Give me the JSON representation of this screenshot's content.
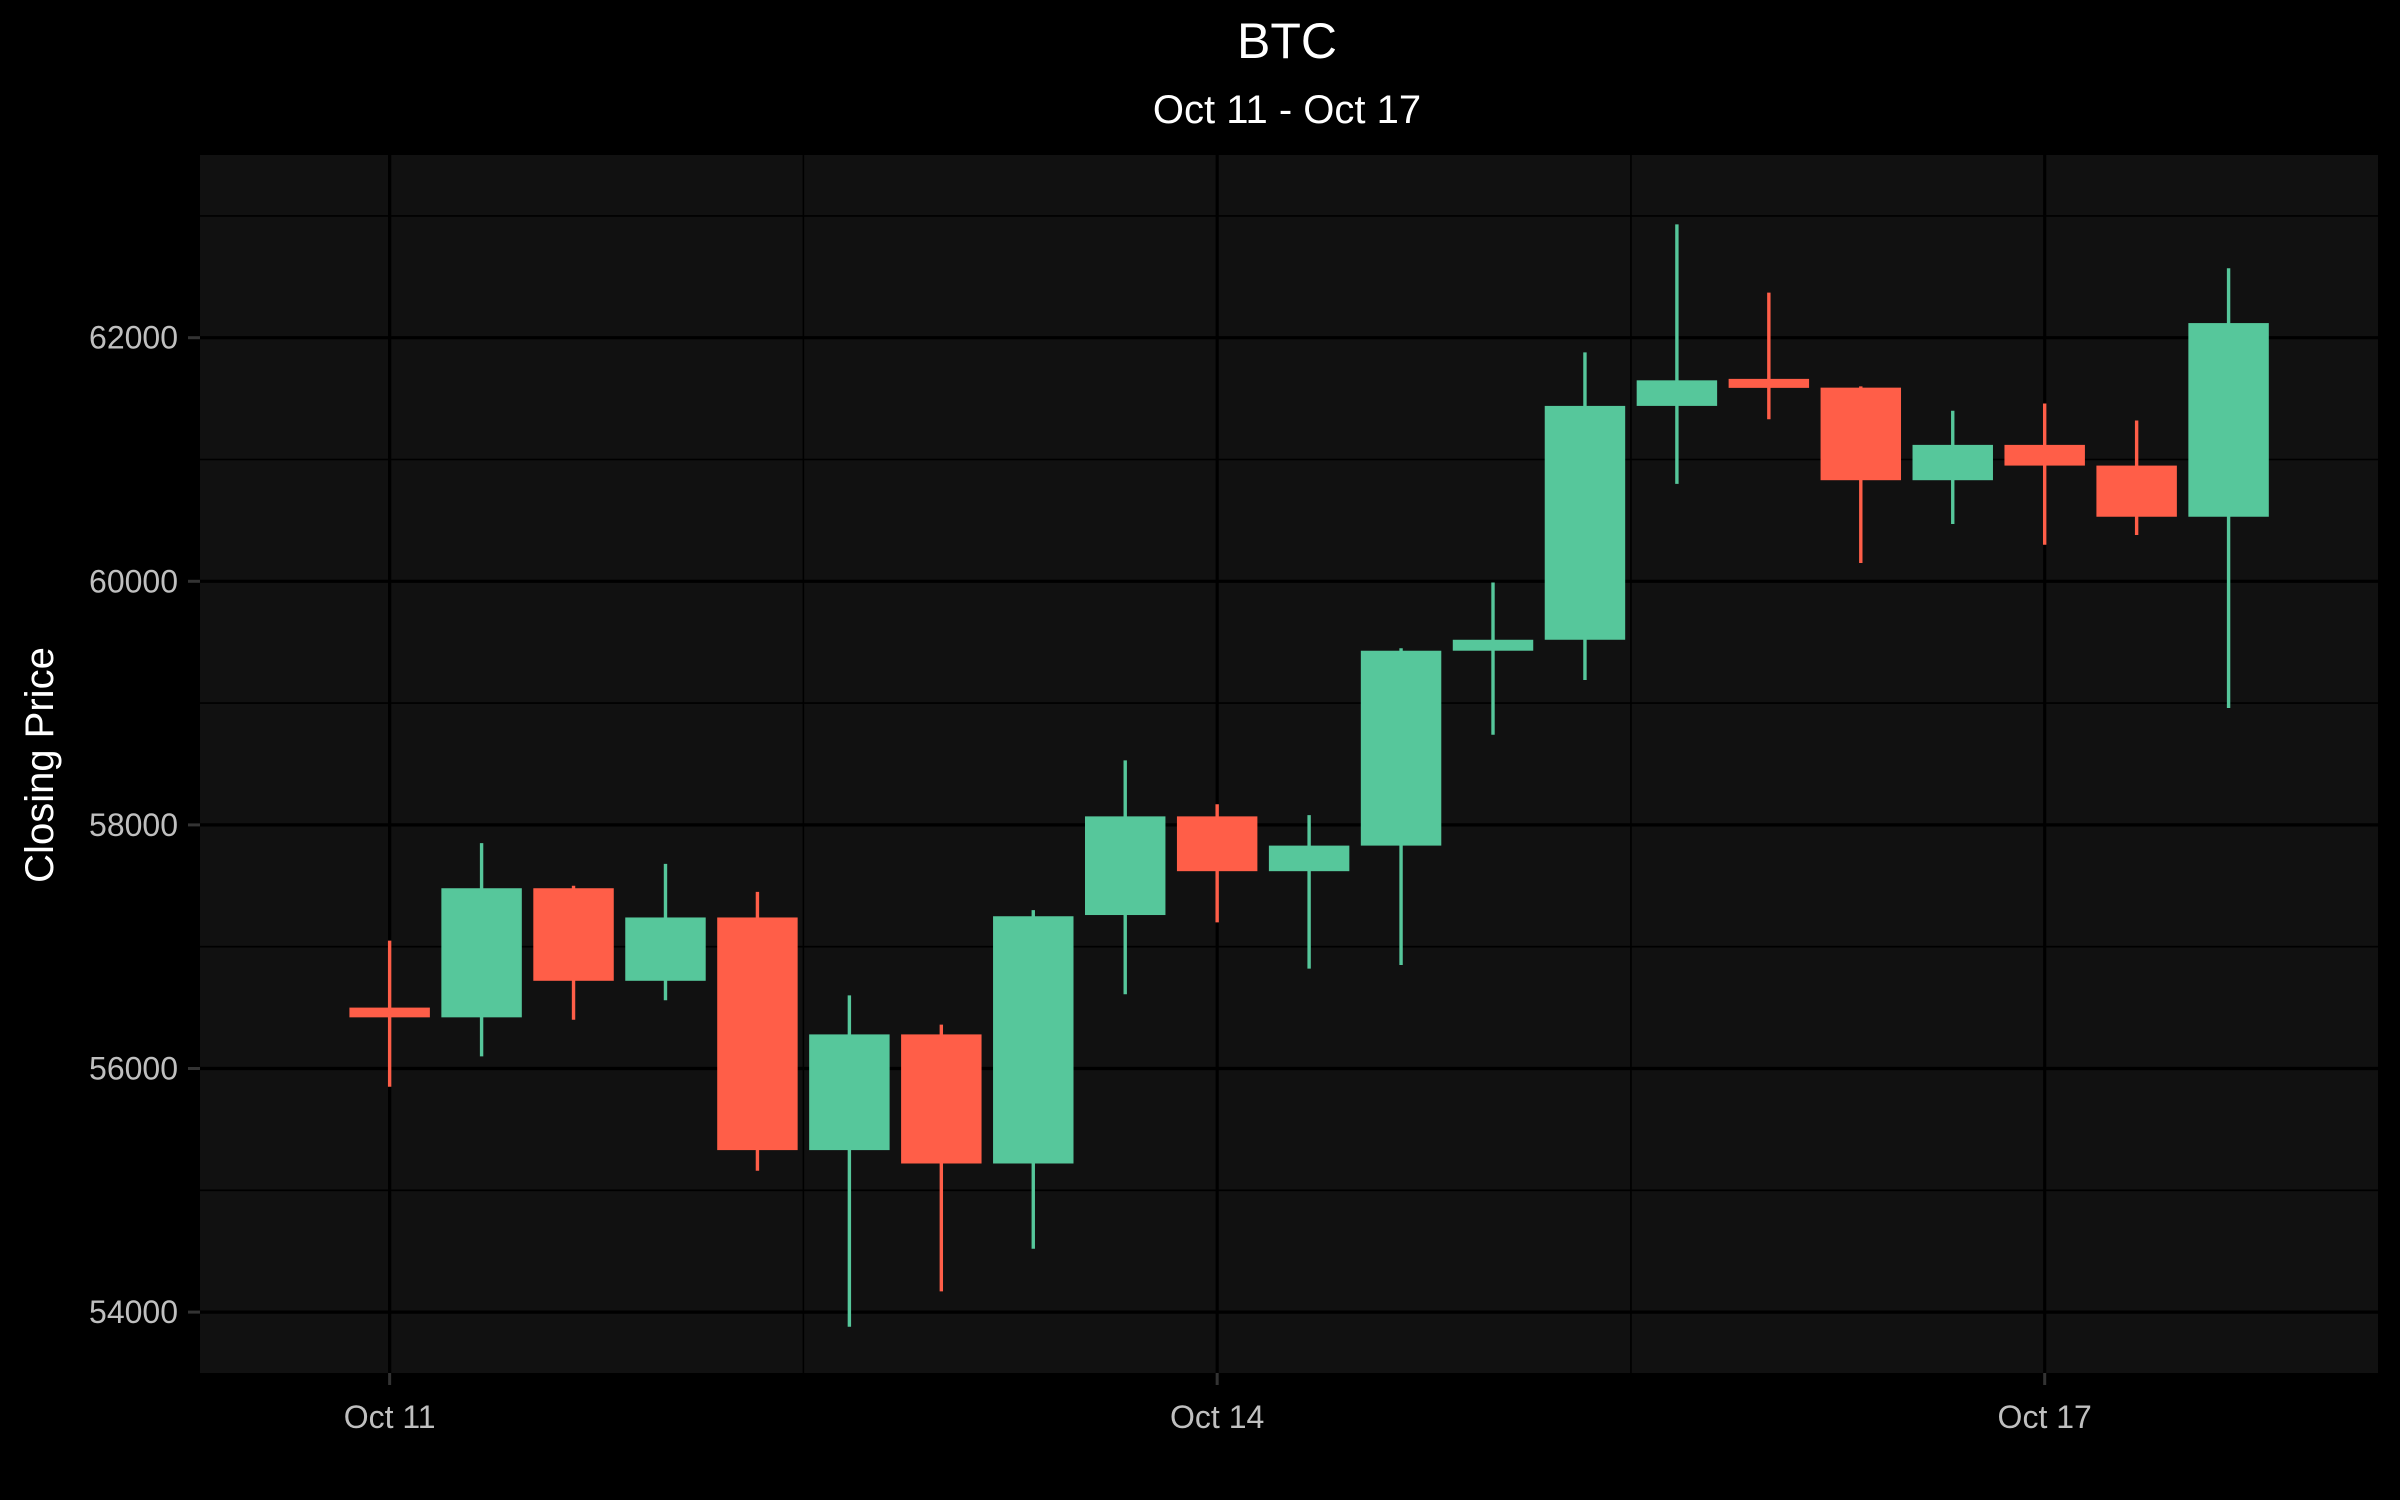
{
  "chart_data": {
    "type": "candlestick",
    "title": "BTC",
    "subtitle": "Oct 11 - Oct 17",
    "ylabel": "Closing Price",
    "xlabel": "",
    "ylim": [
      53500,
      63500
    ],
    "xlim": [
      "2024-10-10 07:30",
      "2024-10-18 05:00"
    ],
    "yticks": [
      54000,
      56000,
      58000,
      60000,
      62000
    ],
    "xticks": [
      {
        "label": "Oct 11",
        "t": "2024-10-11 00:00"
      },
      {
        "label": "Oct 14",
        "t": "2024-10-14 00:00"
      },
      {
        "label": "Oct 17",
        "t": "2024-10-17 00:00"
      }
    ],
    "grid": true,
    "colors": {
      "up": "#56c79b",
      "down": "#ff5e48",
      "background": "#000000",
      "panel": "#111111",
      "grid": "#000000"
    },
    "candles": [
      {
        "t": "2024-10-11 00:00",
        "open": 56500,
        "high": 57050,
        "low": 55850,
        "close": 56420
      },
      {
        "t": "2024-10-11 08:00",
        "open": 56420,
        "high": 57850,
        "low": 56100,
        "close": 57480
      },
      {
        "t": "2024-10-11 16:00",
        "open": 57480,
        "high": 57500,
        "low": 56400,
        "close": 56720
      },
      {
        "t": "2024-10-12 00:00",
        "open": 56720,
        "high": 57680,
        "low": 56560,
        "close": 57240
      },
      {
        "t": "2024-10-12 08:00",
        "open": 57240,
        "high": 57450,
        "low": 55160,
        "close": 55330
      },
      {
        "t": "2024-10-12 16:00",
        "open": 55330,
        "high": 56600,
        "low": 53880,
        "close": 56280
      },
      {
        "t": "2024-10-13 00:00",
        "open": 56280,
        "high": 56360,
        "low": 54170,
        "close": 55220
      },
      {
        "t": "2024-10-13 08:00",
        "open": 55220,
        "high": 57300,
        "low": 54520,
        "close": 57250
      },
      {
        "t": "2024-10-13 16:00",
        "open": 57260,
        "high": 58530,
        "low": 56610,
        "close": 58070
      },
      {
        "t": "2024-10-14 00:00",
        "open": 58070,
        "high": 58170,
        "low": 57200,
        "close": 57620
      },
      {
        "t": "2024-10-14 08:00",
        "open": 57620,
        "high": 58080,
        "low": 56820,
        "close": 57830
      },
      {
        "t": "2024-10-14 16:00",
        "open": 57830,
        "high": 59450,
        "low": 56850,
        "close": 59430
      },
      {
        "t": "2024-10-15 00:00",
        "open": 59430,
        "high": 59990,
        "low": 58740,
        "close": 59520
      },
      {
        "t": "2024-10-15 08:00",
        "open": 59520,
        "high": 61880,
        "low": 59190,
        "close": 61440
      },
      {
        "t": "2024-10-15 16:00",
        "open": 61440,
        "high": 62930,
        "low": 60800,
        "close": 61650
      },
      {
        "t": "2024-10-16 00:00",
        "open": 61650,
        "high": 62370,
        "low": 61330,
        "close": 61600
      },
      {
        "t": "2024-10-16 08:00",
        "open": 61590,
        "high": 61600,
        "low": 60150,
        "close": 60830
      },
      {
        "t": "2024-10-16 16:00",
        "open": 60830,
        "high": 61400,
        "low": 60470,
        "close": 61120
      },
      {
        "t": "2024-10-17 00:00",
        "open": 61120,
        "high": 61460,
        "low": 60300,
        "close": 60950
      },
      {
        "t": "2024-10-17 08:00",
        "open": 60950,
        "high": 61320,
        "low": 60380,
        "close": 60530
      },
      {
        "t": "2024-10-17 16:00",
        "open": 60530,
        "high": 62570,
        "low": 58960,
        "close": 62120
      }
    ]
  }
}
